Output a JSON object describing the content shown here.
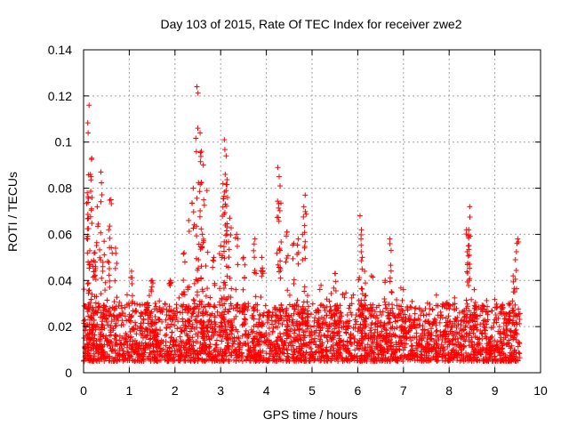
{
  "chart_data": {
    "type": "scatter",
    "title": "Day 103 of 2015, Rate Of TEC Index for receiver zwe2",
    "xlabel": "GPS time / hours",
    "ylabel": "ROTI / TECUs",
    "xlim": [
      0,
      10
    ],
    "ylim": [
      0,
      0.14
    ],
    "x_ticks": [
      "0",
      "1",
      "2",
      "3",
      "4",
      "5",
      "6",
      "7",
      "8",
      "9",
      "10"
    ],
    "y_ticks": [
      "0",
      "0.02",
      "0.04",
      "0.06",
      "0.08",
      "0.1",
      "0.12",
      "0.14"
    ],
    "grid": true,
    "marker": "+",
    "series": [
      {
        "name": "ROTI",
        "color": "#ff0000",
        "x_range_hours": [
          0,
          9.55
        ],
        "baseline_band": [
          0.005,
          0.03
        ],
        "peaks": [
          {
            "x": 0.12,
            "y": 0.116
          },
          {
            "x": 0.1,
            "y": 0.104
          },
          {
            "x": 0.18,
            "y": 0.093
          },
          {
            "x": 0.15,
            "y": 0.086
          },
          {
            "x": 0.08,
            "y": 0.078
          },
          {
            "x": 0.38,
            "y": 0.087
          },
          {
            "x": 0.6,
            "y": 0.075
          },
          {
            "x": 0.3,
            "y": 0.072
          },
          {
            "x": 0.55,
            "y": 0.062
          },
          {
            "x": 0.45,
            "y": 0.057
          },
          {
            "x": 0.7,
            "y": 0.054
          },
          {
            "x": 0.25,
            "y": 0.052
          },
          {
            "x": 1.05,
            "y": 0.044
          },
          {
            "x": 1.5,
            "y": 0.04
          },
          {
            "x": 1.9,
            "y": 0.04
          },
          {
            "x": 2.2,
            "y": 0.052
          },
          {
            "x": 2.3,
            "y": 0.066
          },
          {
            "x": 2.4,
            "y": 0.08
          },
          {
            "x": 2.48,
            "y": 0.124
          },
          {
            "x": 2.5,
            "y": 0.106
          },
          {
            "x": 2.55,
            "y": 0.104
          },
          {
            "x": 2.58,
            "y": 0.096
          },
          {
            "x": 2.62,
            "y": 0.09
          },
          {
            "x": 2.7,
            "y": 0.079
          },
          {
            "x": 2.6,
            "y": 0.06
          },
          {
            "x": 2.85,
            "y": 0.05
          },
          {
            "x": 3.0,
            "y": 0.055
          },
          {
            "x": 3.08,
            "y": 0.101
          },
          {
            "x": 3.12,
            "y": 0.094
          },
          {
            "x": 3.1,
            "y": 0.086
          },
          {
            "x": 3.05,
            "y": 0.082
          },
          {
            "x": 3.15,
            "y": 0.076
          },
          {
            "x": 3.2,
            "y": 0.067
          },
          {
            "x": 3.35,
            "y": 0.06
          },
          {
            "x": 3.5,
            "y": 0.05
          },
          {
            "x": 3.75,
            "y": 0.058
          },
          {
            "x": 3.9,
            "y": 0.05
          },
          {
            "x": 4.25,
            "y": 0.089
          },
          {
            "x": 4.28,
            "y": 0.085
          },
          {
            "x": 4.3,
            "y": 0.081
          },
          {
            "x": 4.45,
            "y": 0.061
          },
          {
            "x": 4.6,
            "y": 0.056
          },
          {
            "x": 4.85,
            "y": 0.077
          },
          {
            "x": 4.82,
            "y": 0.072
          },
          {
            "x": 4.7,
            "y": 0.058
          },
          {
            "x": 5.5,
            "y": 0.043
          },
          {
            "x": 6.05,
            "y": 0.068
          },
          {
            "x": 6.08,
            "y": 0.062
          },
          {
            "x": 6.1,
            "y": 0.05
          },
          {
            "x": 6.15,
            "y": 0.044
          },
          {
            "x": 6.3,
            "y": 0.042
          },
          {
            "x": 6.7,
            "y": 0.058
          },
          {
            "x": 6.73,
            "y": 0.053
          },
          {
            "x": 6.6,
            "y": 0.04
          },
          {
            "x": 7.0,
            "y": 0.036
          },
          {
            "x": 8.38,
            "y": 0.062
          },
          {
            "x": 8.45,
            "y": 0.072
          },
          {
            "x": 8.42,
            "y": 0.055
          },
          {
            "x": 8.55,
            "y": 0.036
          },
          {
            "x": 9.5,
            "y": 0.058
          },
          {
            "x": 9.45,
            "y": 0.049
          },
          {
            "x": 9.4,
            "y": 0.042
          },
          {
            "x": 9.3,
            "y": 0.03
          }
        ]
      }
    ]
  }
}
